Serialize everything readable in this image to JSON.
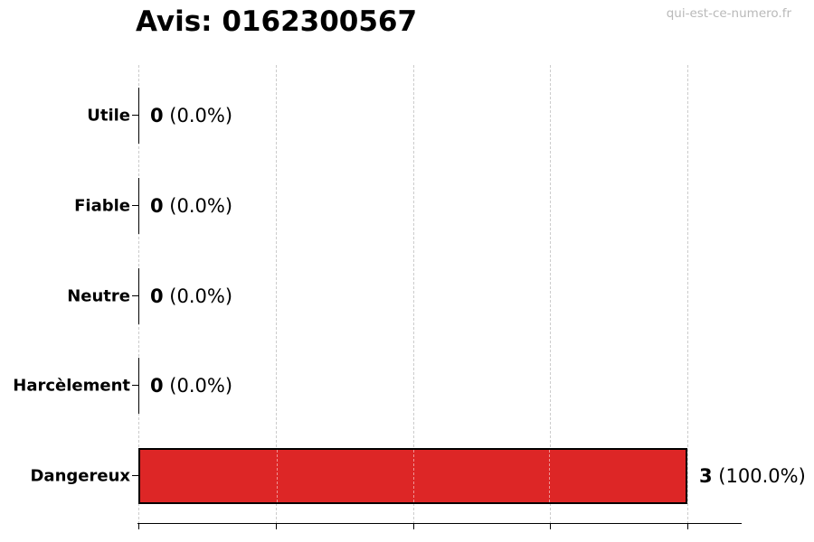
{
  "title": "Avis: 0162300567",
  "watermark": "qui-est-ce-numero.fr",
  "chart_data": {
    "type": "bar",
    "orientation": "horizontal",
    "title": "Avis: 0162300567",
    "categories": [
      "Utile",
      "Fiable",
      "Neutre",
      "Harcèlement",
      "Dangereux"
    ],
    "values": [
      0,
      0,
      0,
      0,
      3
    ],
    "counts": [
      "0",
      "0",
      "0",
      "0",
      "3"
    ],
    "pct_labels": [
      " (0.0%)",
      " (0.0%)",
      " (0.0%)",
      " (0.0%)",
      " (100.0%)"
    ],
    "total_reviews": 3,
    "xlim": [
      0,
      3
    ],
    "xticks": [
      0,
      0.75,
      1.5,
      2.25,
      3
    ],
    "xtick_labels_visible": false,
    "grid": "vertical-dashed",
    "legend": "none",
    "bar_color": "#dd2626",
    "bar_edge_color": "#000000",
    "gridline_color": "#cccccc"
  }
}
